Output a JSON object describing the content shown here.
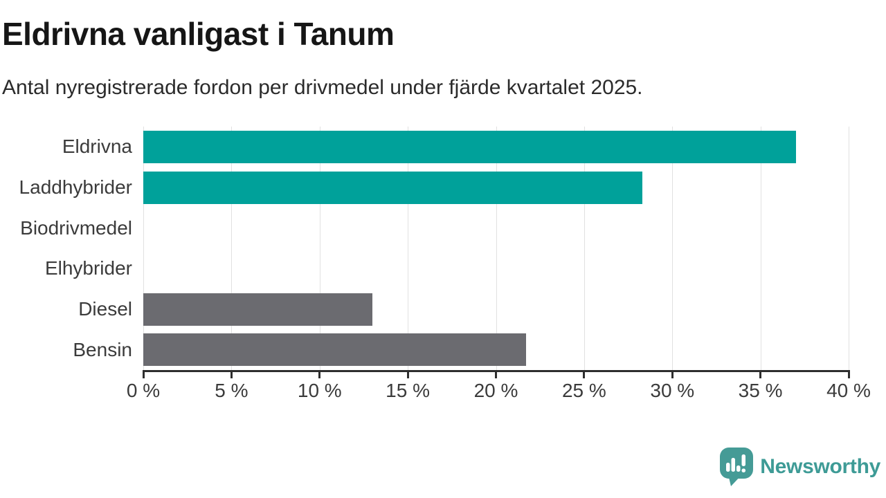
{
  "header": {
    "title": "Eldrivna vanligast i Tanum",
    "subtitle": "Antal nyregistrerade fordon per drivmedel under fjärde kvartalet 2025."
  },
  "chart_data": {
    "type": "bar",
    "orientation": "horizontal",
    "title": "Eldrivna vanligast i Tanum",
    "subtitle": "Antal nyregistrerade fordon per drivmedel under fjärde kvartalet 2025.",
    "categories": [
      "Eldrivna",
      "Laddhybrider",
      "Biodrivmedel",
      "Elhybrider",
      "Diesel",
      "Bensin"
    ],
    "values": [
      37,
      28.3,
      0,
      0,
      13,
      21.7
    ],
    "unit": "%",
    "xlim": [
      0,
      40
    ],
    "x_ticks": [
      0,
      5,
      10,
      15,
      20,
      25,
      30,
      35,
      40
    ],
    "x_tick_labels": [
      "0 %",
      "5 %",
      "10 %",
      "15 %",
      "20 %",
      "25 %",
      "30 %",
      "35 %",
      "40 %"
    ],
    "bar_colors": [
      "#00A19A",
      "#00A19A",
      "#00A19A",
      "#00A19A",
      "#6B6B70",
      "#6B6B70"
    ],
    "grid": "vertical-only",
    "legend": "none"
  },
  "colors": {
    "teal_bar": "#00A19A",
    "gray_bar": "#6B6B70",
    "gridline": "#E1E1E1",
    "axis": "#2E2E2E",
    "label_text": "#3B3B3B",
    "title_text": "#161616",
    "logo_teal": "#459B96"
  },
  "branding": {
    "logo_text": "Newsworthy",
    "logo_icon": "newsworthy-speech-bubble-barchart-icon"
  }
}
